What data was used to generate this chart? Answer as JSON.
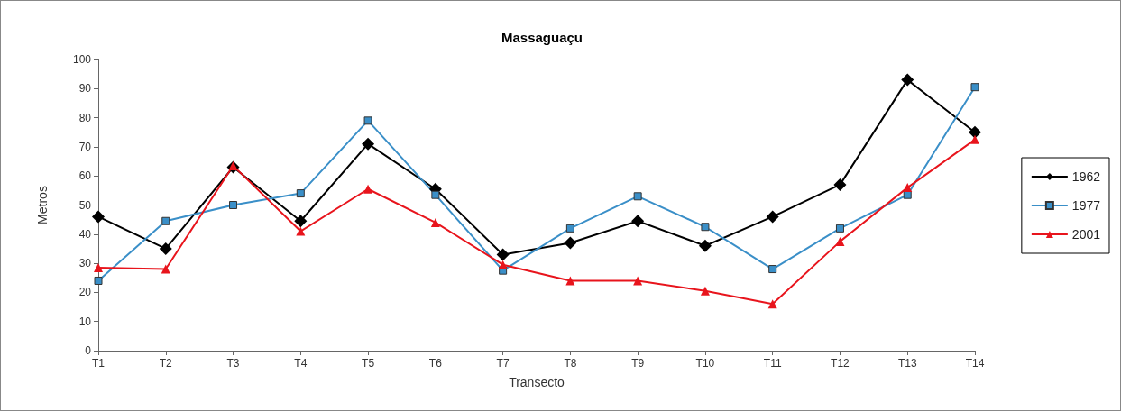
{
  "chart_data": {
    "type": "line",
    "title": "Massaguaçu",
    "xlabel": "Transecto",
    "ylabel": "Metros",
    "categories": [
      "T1",
      "T2",
      "T3",
      "T4",
      "T5",
      "T6",
      "T7",
      "T8",
      "T9",
      "T10",
      "T11",
      "T12",
      "T13",
      "T14"
    ],
    "series": [
      {
        "name": "1962",
        "color": "#000000",
        "marker": "diamond",
        "values": [
          46,
          35,
          63,
          44.5,
          71,
          55.5,
          33,
          37,
          44.5,
          36,
          46,
          57,
          93,
          75
        ]
      },
      {
        "name": "1977",
        "color": "#3a8fc8",
        "marker": "square",
        "values": [
          24,
          44.5,
          50,
          54,
          79,
          53.5,
          27.5,
          42,
          53,
          42.5,
          28,
          42,
          53.5,
          90.5
        ]
      },
      {
        "name": "2001",
        "color": "#e8141c",
        "marker": "triangle",
        "values": [
          28.5,
          28,
          63.5,
          41,
          55.5,
          44,
          29.5,
          24,
          24,
          20.5,
          16,
          37.5,
          56,
          72.5
        ]
      }
    ],
    "ylim": [
      0,
      100
    ],
    "yticks": [
      0,
      10,
      20,
      30,
      40,
      50,
      60,
      70,
      80,
      90,
      100
    ],
    "grid": false,
    "legend": "right",
    "line_style": "solid"
  }
}
